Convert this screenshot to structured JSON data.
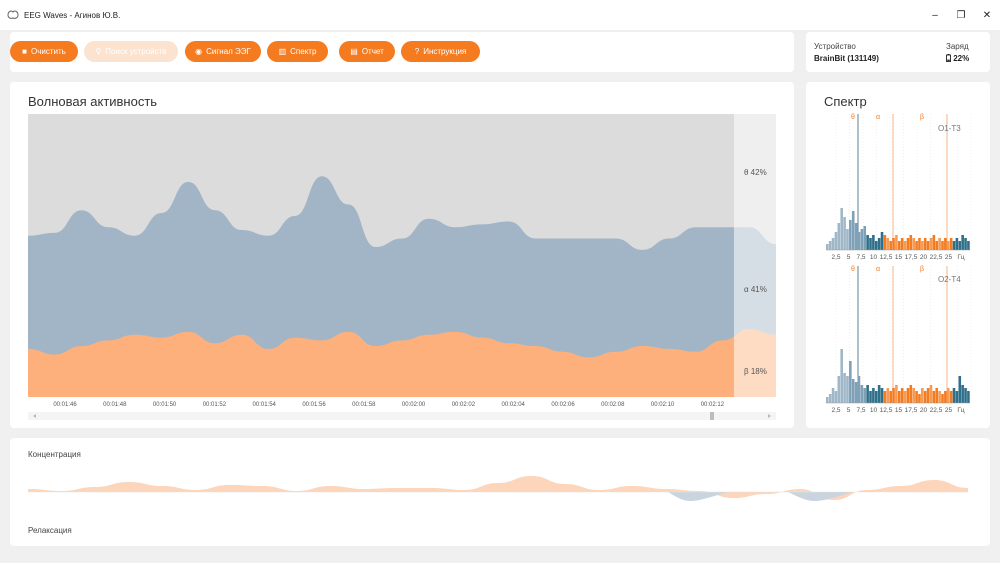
{
  "window": {
    "title": "EEG Waves - Агинов Ю.В.",
    "controls": [
      "–",
      "❐",
      "✕"
    ]
  },
  "toolbar": {
    "buttons": [
      {
        "label": "Очистить",
        "icon": "stop-icon",
        "glyph": "■",
        "enabled": true
      },
      {
        "label": "Поиск устройств",
        "icon": "search-device-icon",
        "glyph": "⚲",
        "enabled": false
      },
      {
        "label": "Сигнал ЭЭГ",
        "icon": "signal-icon",
        "glyph": "◉",
        "enabled": true
      },
      {
        "label": "Спектр",
        "icon": "bar-chart-icon",
        "glyph": "▥",
        "enabled": true
      },
      {
        "label": "Отчет",
        "icon": "document-icon",
        "glyph": "▤",
        "enabled": true
      },
      {
        "label": "Инструкция",
        "icon": "help-icon",
        "glyph": "?",
        "enabled": true
      }
    ],
    "accent": "#f47b20",
    "disabled_color": "#fbe3d0"
  },
  "device": {
    "device_label": "Устройство",
    "device_value": "BrainBit (131149)",
    "battery_label": "Заряд",
    "battery_value": "22%",
    "battery_icon": "battery-icon"
  },
  "wave_panel": {
    "title": "Волновая активность",
    "bands": [
      {
        "label": "θ 42%",
        "color": "#dcdcdc"
      },
      {
        "label": "α 41%",
        "color": "#a2b5c6"
      },
      {
        "label": "β 18%",
        "color": "#fdb07b"
      }
    ],
    "time_ticks": [
      "00:01:46",
      "00:01:48",
      "00:01:50",
      "00:01:52",
      "00:01:54",
      "00:01:56",
      "00:01:58",
      "00:02:00",
      "00:02:02",
      "00:02:04",
      "00:02:06",
      "00:02:08",
      "00:02:10",
      "00:02:12"
    ]
  },
  "chart_data": [
    {
      "type": "area",
      "x": [
        "00:01:45",
        "00:01:46",
        "00:01:47",
        "00:01:48",
        "00:01:49",
        "00:01:50",
        "00:01:51",
        "00:01:52",
        "00:01:53",
        "00:01:54",
        "00:01:55",
        "00:01:56",
        "00:01:57",
        "00:01:58",
        "00:01:59",
        "00:02:00",
        "00:02:01",
        "00:02:02",
        "00:02:03",
        "00:02:04",
        "00:02:05",
        "00:02:06",
        "00:02:07",
        "00:02:08",
        "00:02:09",
        "00:02:10",
        "00:02:11",
        "00:02:12",
        "00:02:13"
      ],
      "stacked": true,
      "ylim": [
        0,
        100
      ],
      "series": [
        {
          "name": "β",
          "values": [
            17,
            15,
            18,
            20,
            22,
            21,
            23,
            19,
            22,
            17,
            21,
            20,
            23,
            18,
            20,
            22,
            23,
            21,
            19,
            18,
            16,
            14,
            16,
            18,
            17,
            16,
            20,
            24,
            22
          ]
        },
        {
          "name": "α",
          "values": [
            40,
            43,
            48,
            40,
            35,
            44,
            53,
            47,
            37,
            40,
            43,
            58,
            45,
            35,
            36,
            41,
            37,
            40,
            43,
            38,
            40,
            42,
            40,
            34,
            39,
            44,
            40,
            36,
            32
          ]
        },
        {
          "name": "θ",
          "values": [
            43,
            42,
            34,
            40,
            43,
            35,
            24,
            34,
            41,
            43,
            36,
            22,
            32,
            47,
            44,
            37,
            40,
            39,
            38,
            44,
            44,
            44,
            44,
            48,
            44,
            40,
            40,
            40,
            46
          ]
        }
      ]
    },
    {
      "type": "bar",
      "channel": "O1-T3",
      "xlabel": "Гц",
      "x_ticks": [
        "2,5",
        "5",
        "7,5",
        "10",
        "12,5",
        "15",
        "17,5",
        "20",
        "22,5",
        "25",
        "Гц"
      ],
      "band_markers": [
        "θ",
        "α",
        "β"
      ],
      "values": [
        2,
        3,
        4,
        6,
        9,
        14,
        11,
        7,
        10,
        13,
        9,
        6,
        7,
        8,
        5,
        4,
        5,
        3,
        4,
        6,
        5,
        4,
        3,
        4,
        5,
        3,
        4,
        3,
        4,
        5,
        4,
        3,
        4,
        3,
        4,
        3,
        4,
        5,
        3,
        4,
        3,
        4,
        3,
        4,
        3,
        4,
        3,
        5,
        4,
        3
      ]
    },
    {
      "type": "bar",
      "channel": "O2-T4",
      "xlabel": "Гц",
      "x_ticks": [
        "2,5",
        "5",
        "7,5",
        "10",
        "12,5",
        "15",
        "17,5",
        "20",
        "22,5",
        "25",
        "Гц"
      ],
      "band_markers": [
        "θ",
        "α",
        "β"
      ],
      "values": [
        2,
        3,
        5,
        4,
        9,
        18,
        10,
        9,
        14,
        8,
        7,
        9,
        6,
        5,
        6,
        4,
        5,
        4,
        6,
        5,
        4,
        5,
        4,
        5,
        6,
        4,
        5,
        4,
        5,
        6,
        5,
        4,
        3,
        5,
        4,
        5,
        6,
        4,
        5,
        4,
        3,
        4,
        5,
        4,
        5,
        4,
        9,
        6,
        5,
        4
      ]
    },
    {
      "type": "area",
      "label": "Концентрация",
      "values": [
        3,
        1,
        5,
        10,
        6,
        2,
        7,
        6,
        1,
        6,
        3,
        4,
        4,
        2,
        9,
        16,
        8,
        2,
        6,
        3,
        1,
        -6,
        -2,
        3,
        -8,
        2,
        6,
        12,
        4
      ]
    }
  ],
  "spectrum_panel": {
    "title": "Спектр",
    "channels": [
      "O1-T3",
      "O2-T4"
    ],
    "band_markers": [
      "θ",
      "α",
      "β"
    ]
  },
  "bottom_panel": {
    "concentration_label": "Концентрация",
    "relaxation_label": "Релаксация"
  }
}
